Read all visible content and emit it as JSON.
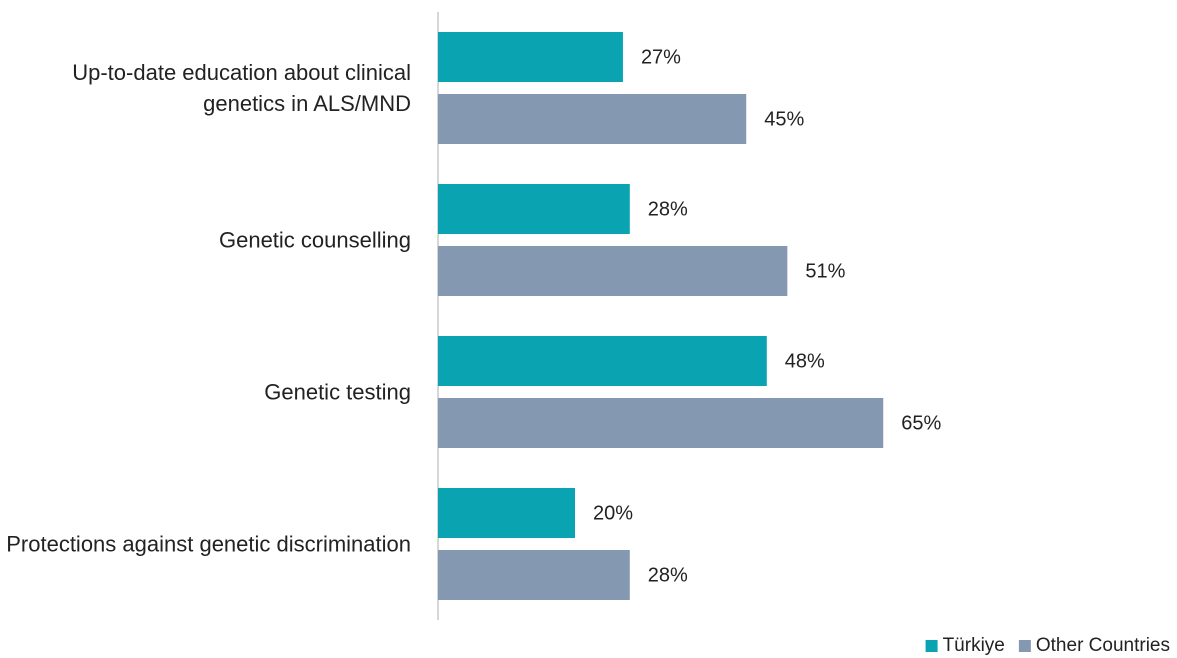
{
  "chart_data": {
    "type": "hbar",
    "categories": [
      "Up-to-date education about clinical genetics in ALS/MND",
      "Genetic counselling",
      "Genetic testing",
      "Protections against genetic discrimination"
    ],
    "series": [
      {
        "name": "Türkiye",
        "color": "#09a3b2",
        "values": [
          27,
          28,
          48,
          20
        ],
        "value_labels": [
          "27%",
          "28%",
          "48%",
          "20%"
        ]
      },
      {
        "name": "Other Countries",
        "color": "#8499b1",
        "values": [
          45,
          51,
          65,
          28
        ],
        "value_labels": [
          "45%",
          "51%",
          "65%",
          "28%"
        ]
      }
    ],
    "xlim": [
      0,
      100
    ],
    "legend": "bottom-right"
  }
}
